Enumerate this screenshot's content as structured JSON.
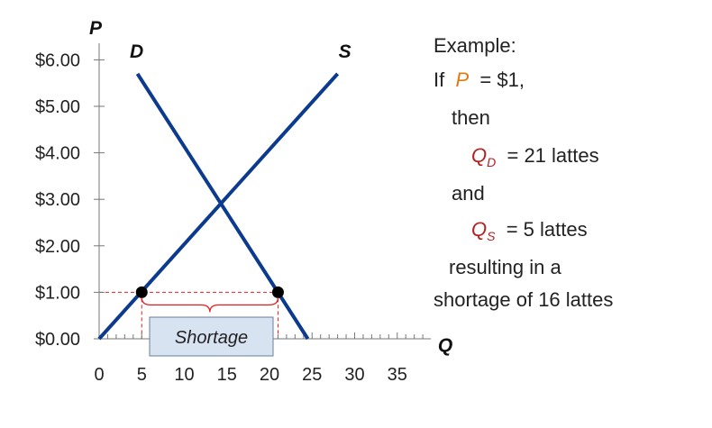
{
  "chart_data": {
    "type": "line",
    "title": "",
    "xlabel": "Q",
    "ylabel": "P",
    "xlim": [
      0,
      37
    ],
    "ylim": [
      0,
      6.2
    ],
    "x_ticks": [
      0,
      5,
      10,
      15,
      20,
      25,
      30,
      35
    ],
    "x_tick_labels": [
      "0",
      "5",
      "10",
      "15",
      "20",
      "25",
      "30",
      "35"
    ],
    "y_ticks": [
      0,
      1,
      2,
      3,
      4,
      5,
      6
    ],
    "y_tick_labels": [
      "$0.00",
      "$1.00",
      "$2.00",
      "$3.00",
      "$4.00",
      "$5.00",
      "$6.00"
    ],
    "series": [
      {
        "name": "D",
        "x": [
          4.5,
          24.5
        ],
        "y": [
          5.7,
          0.0
        ],
        "color": "#0b3a8f"
      },
      {
        "name": "S",
        "x": [
          0,
          28
        ],
        "y": [
          0,
          5.7
        ],
        "color": "#0b3a8f"
      }
    ],
    "points": [
      {
        "x": 5,
        "y": 1
      },
      {
        "x": 21,
        "y": 1
      }
    ],
    "shortage_label": "Shortage",
    "colors": {
      "curve": "#0b3a8f",
      "guide": "#e02020",
      "box_fill": "#d8e3f2",
      "box_border": "#6a7f9a"
    }
  },
  "note": {
    "line1": "Example:",
    "if_word": "If",
    "p_var": "P",
    "p_value": "= $1,",
    "then_word": "then",
    "qd_var": "Q",
    "qd_sub": "D",
    "qd_value": "= 21 lattes",
    "and_word": "and",
    "qs_var": "Q",
    "qs_sub": "S",
    "qs_value": "= 5 lattes",
    "result_line1": "resulting in a",
    "result_line2": "shortage of 16 lattes"
  }
}
